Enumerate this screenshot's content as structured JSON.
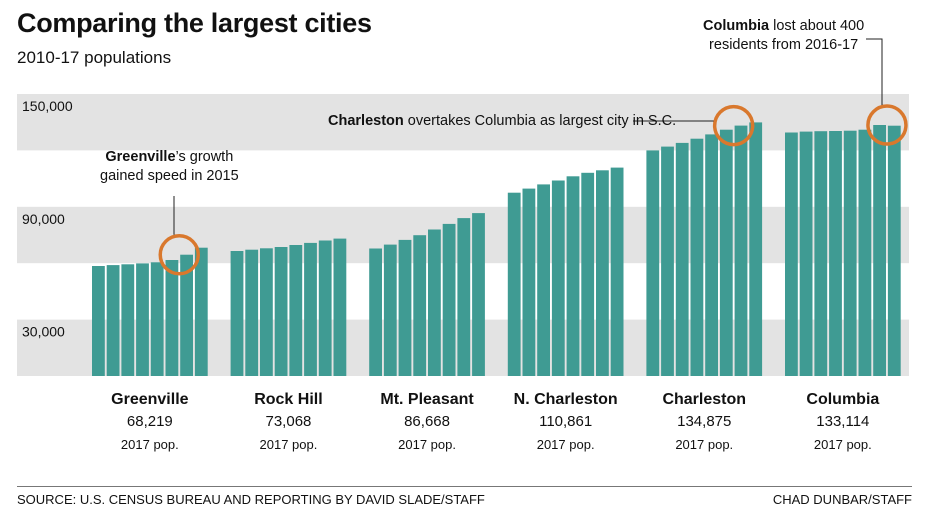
{
  "title": "Comparing the largest cities",
  "subtitle": "2010-17 populations",
  "source": "SOURCE: U.S. CENSUS BUREAU AND REPORTING BY DAVID SLADE/STAFF",
  "credit": "CHAD DUNBAR/STAFF",
  "colors": {
    "bar": "#3f9b93",
    "band": "#e3e3e3",
    "highlight": "#d9782d",
    "text": "#111111"
  },
  "annotations": {
    "greenville": {
      "bold": "Greenville",
      "rest": "’s growth",
      "line2": "gained speed in 2015"
    },
    "charleston": {
      "bold": "Charleston",
      "rest": " overtakes Columbia as largest city in S.C."
    },
    "columbia": {
      "bold": "Columbia",
      "rest": " lost about 400",
      "line2": "residents from 2016-17"
    }
  },
  "chart_data": {
    "type": "bar",
    "title": "Comparing the largest cities",
    "subtitle": "2010-17 populations",
    "years": [
      "2010",
      "2011",
      "2012",
      "2013",
      "2014",
      "2015",
      "2016",
      "2017"
    ],
    "y_ticks": [
      {
        "value": 30000,
        "label": "30,000"
      },
      {
        "value": 90000,
        "label": "90,000"
      },
      {
        "value": 150000,
        "label": "150,000"
      }
    ],
    "ylim": [
      0,
      150000
    ],
    "pop_note": "2017 pop.",
    "series": [
      {
        "name": "Greenville",
        "pop_2017": "68,219",
        "values": [
          58500,
          59000,
          59400,
          59900,
          60500,
          61700,
          64500,
          68219
        ]
      },
      {
        "name": "Rock Hill",
        "pop_2017": "73,068",
        "values": [
          66500,
          67200,
          67900,
          68600,
          69700,
          70800,
          72100,
          73068
        ]
      },
      {
        "name": "Mt. Pleasant",
        "pop_2017": "86,668",
        "values": [
          67800,
          69900,
          72400,
          74900,
          77900,
          80900,
          84000,
          86668
        ]
      },
      {
        "name": "N. Charleston",
        "pop_2017": "110,861",
        "values": [
          97500,
          99700,
          101900,
          104000,
          106200,
          108100,
          109400,
          110861
        ]
      },
      {
        "name": "Charleston",
        "pop_2017": "134,875",
        "values": [
          120000,
          122000,
          124000,
          126200,
          128500,
          131000,
          133200,
          134875
        ]
      },
      {
        "name": "Columbia",
        "pop_2017": "133,114",
        "values": [
          129500,
          130000,
          130200,
          130300,
          130500,
          131000,
          133500,
          133114
        ]
      }
    ]
  }
}
